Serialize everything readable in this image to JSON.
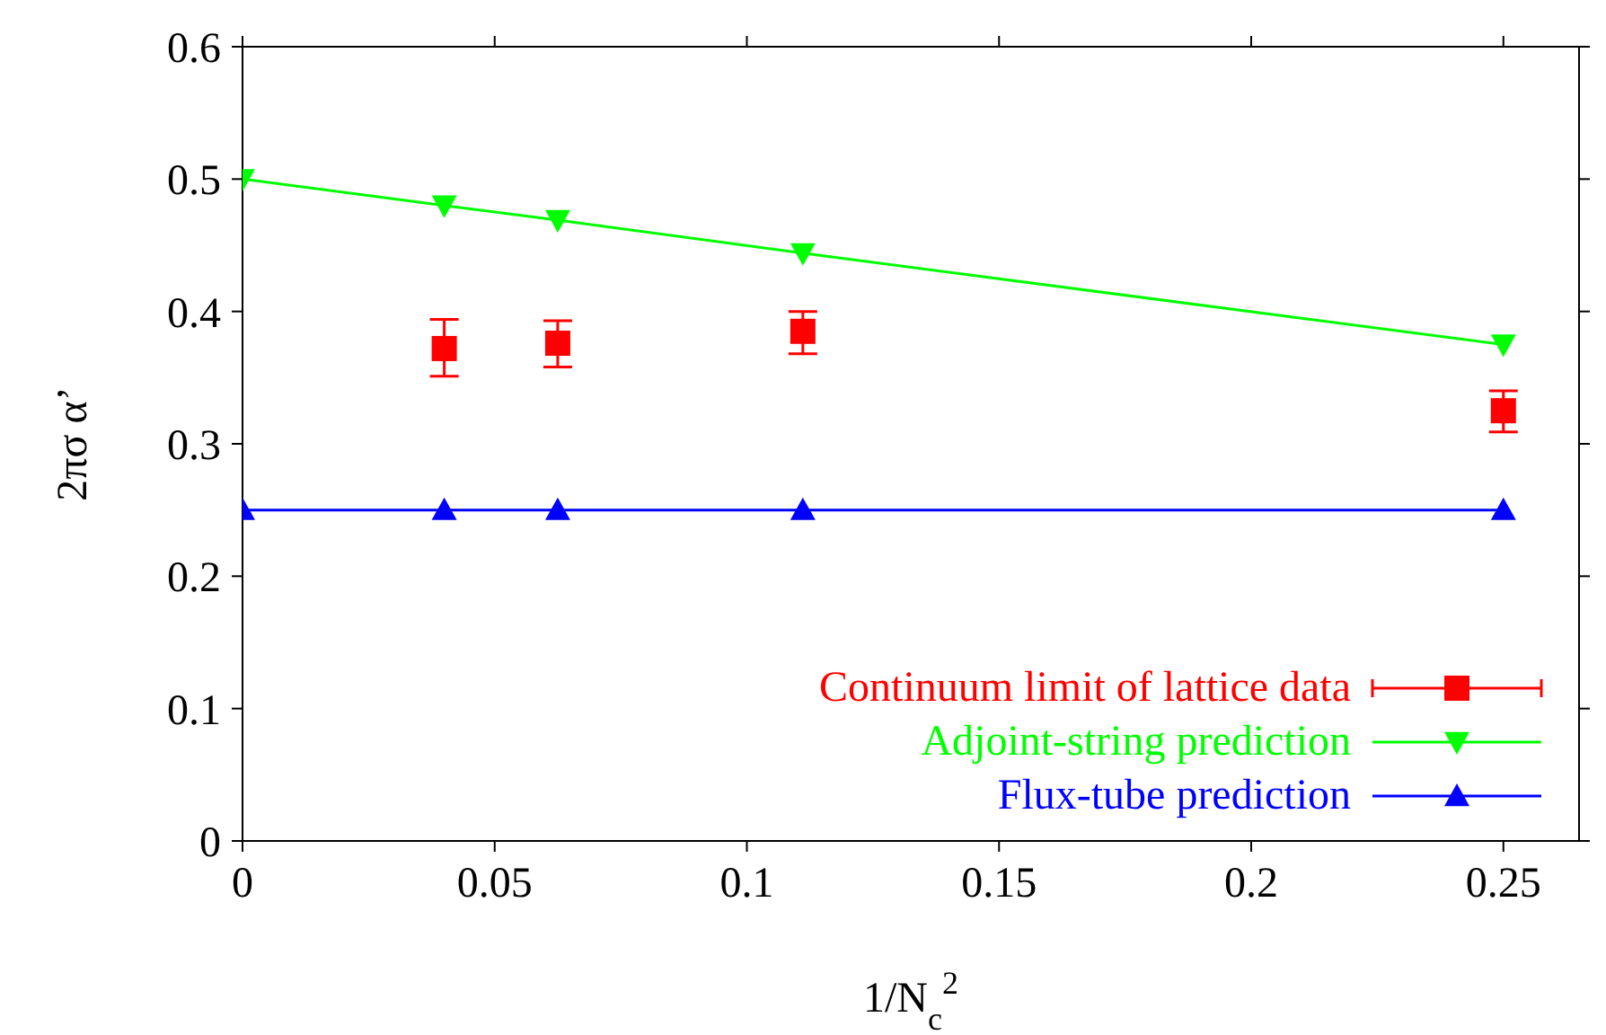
{
  "chart_data": {
    "type": "scatter",
    "xlabel": "1/N$_{c}$$^{2}$",
    "ylabel": "2πσ α’",
    "xlim": [
      0,
      0.265
    ],
    "xticks": [
      0,
      0.05,
      0.1,
      0.15,
      0.2,
      0.25
    ],
    "ylim": [
      0,
      0.6
    ],
    "yticks": [
      0,
      0.1,
      0.2,
      0.3,
      0.4,
      0.5,
      0.6
    ],
    "legend": "bottom right",
    "series": [
      {
        "name": "Continuum limit of lattice data",
        "color": "#ff0000",
        "marker": "square",
        "x": [
          0.04,
          0.0625,
          0.1111,
          0.25
        ],
        "values": [
          0.372,
          0.376,
          0.385,
          0.325
        ],
        "errors": [
          [
            0.351,
            0.394
          ],
          [
            0.358,
            0.393
          ],
          [
            0.368,
            0.4
          ],
          [
            0.309,
            0.34
          ]
        ]
      },
      {
        "name": "Adjoint-string prediction",
        "type": "line",
        "color": "#00ff00",
        "marker": "triangle-down",
        "x": [
          0,
          0.04,
          0.0625,
          0.1111,
          0.25
        ],
        "values": [
          0.5,
          0.48,
          0.469,
          0.444,
          0.375
        ]
      },
      {
        "name": "Flux-tube prediction",
        "type": "line",
        "color": "#0000ff",
        "marker": "triangle",
        "x": [
          0,
          0.04,
          0.0625,
          0.1111,
          0.25
        ],
        "values": [
          0.25,
          0.25,
          0.25,
          0.25,
          0.25
        ]
      }
    ]
  }
}
